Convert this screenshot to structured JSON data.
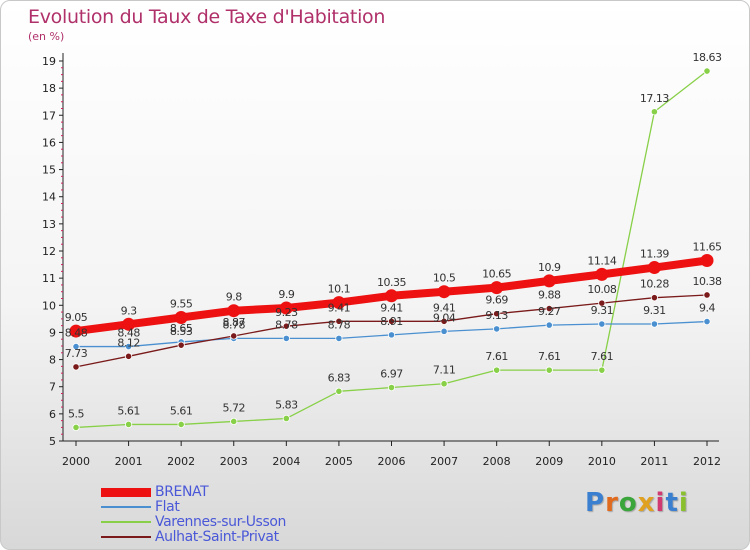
{
  "title": "Evolution du Taux de Taxe d'Habitation",
  "subtitle": "(en %)",
  "brand": {
    "text": "Proxiti",
    "colors": [
      "#3a7fd0",
      "#e06b1e",
      "#3aa53a",
      "#e0a020",
      "#d03a70",
      "#3a7fd0",
      "#8ac02e"
    ]
  },
  "chart_data": {
    "type": "line",
    "title": "Evolution du Taux de Taxe d'Habitation",
    "ylabel": "(en %)",
    "xlabel": "",
    "x": [
      "2000",
      "2001",
      "2002",
      "2003",
      "2004",
      "2005",
      "2006",
      "2007",
      "2008",
      "2009",
      "2010",
      "2011",
      "2012"
    ],
    "ylim": [
      5,
      19
    ],
    "yticks": [
      "5",
      "6",
      "7",
      "8",
      "9",
      "10",
      "11",
      "12",
      "13",
      "14",
      "15",
      "16",
      "17",
      "18",
      "19"
    ],
    "grid": false,
    "legend_position": "bottom-left",
    "series": [
      {
        "name": "BRENAT",
        "color": "#ee1111",
        "values": [
          9.05,
          9.3,
          9.55,
          9.8,
          9.9,
          10.1,
          10.35,
          10.5,
          10.65,
          10.9,
          11.14,
          11.39,
          11.65
        ],
        "labels": [
          "9.05",
          "9.3",
          "9.55",
          "9.8",
          "9.9",
          "10.1",
          "10.35",
          "10.5",
          "10.65",
          "10.9",
          "11.14",
          "11.39",
          "11.65"
        ]
      },
      {
        "name": "Flat",
        "color": "#4a90d0",
        "values": [
          8.48,
          8.48,
          8.65,
          8.78,
          8.78,
          8.78,
          8.91,
          9.04,
          9.13,
          9.27,
          9.31,
          9.31,
          9.4
        ],
        "labels": [
          "8.48",
          "8.48",
          "8.65",
          "8.78",
          "8.78",
          "8.78",
          "8.91",
          "9.04",
          "9.13",
          "9.27",
          "9.31",
          "9.31",
          "9.4"
        ]
      },
      {
        "name": "Varennes-sur-Usson",
        "color": "#88d048",
        "values": [
          5.5,
          5.61,
          5.61,
          5.72,
          5.83,
          6.83,
          6.97,
          7.11,
          7.61,
          7.61,
          7.61,
          17.13,
          18.63
        ],
        "labels": [
          "5.5",
          "5.61",
          "5.61",
          "5.72",
          "5.83",
          "6.83",
          "6.97",
          "7.11",
          "7.61",
          "7.61",
          "7.61",
          "17.13",
          "18.63"
        ]
      },
      {
        "name": "Aulhat-Saint-Privat",
        "color": "#7a1a1a",
        "values": [
          7.73,
          8.12,
          8.53,
          8.87,
          9.23,
          9.41,
          9.41,
          9.41,
          9.69,
          9.88,
          10.08,
          10.28,
          10.38
        ],
        "labels": [
          "7.73",
          "8.12",
          "8.53",
          "8.87",
          "9.23",
          "9.41",
          "9.41",
          "9.41",
          "9.69",
          "9.88",
          "10.08",
          "10.28",
          "10.38"
        ]
      }
    ]
  }
}
